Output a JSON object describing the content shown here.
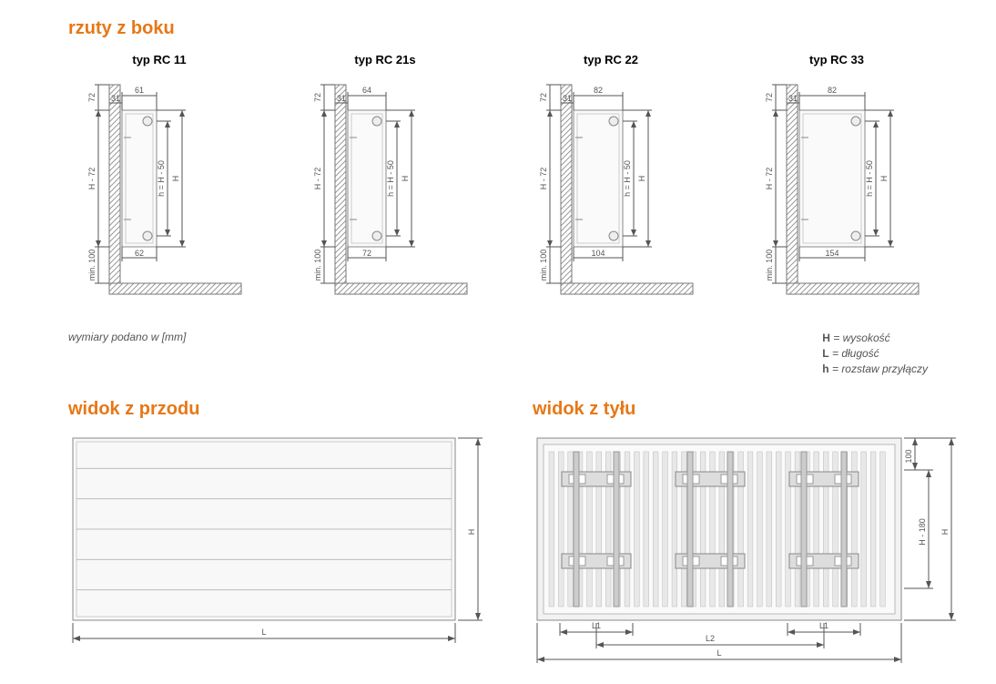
{
  "colors": {
    "accent": "#e67817",
    "line": "#555555",
    "hatch": "#999999",
    "fill_light": "#f5f5f5",
    "background": "#ffffff"
  },
  "section_titles": {
    "side": "rzuty z boku",
    "front": "widok z przodu",
    "back": "widok z tyłu"
  },
  "units_note": "wymiary podano w [mm]",
  "legend": {
    "H": "wysokość",
    "L": "długość",
    "h": "rozstaw przyłączy"
  },
  "side_types": [
    {
      "label": "typ RC 11",
      "top_dim": "61",
      "top_offset": "31",
      "left_top": "72",
      "bottom_dim": "62",
      "body_width": 38
    },
    {
      "label": "typ RC 21s",
      "top_dim": "64",
      "top_offset": "31",
      "left_top": "72",
      "bottom_dim": "72",
      "body_width": 42
    },
    {
      "label": "typ RC 22",
      "top_dim": "82",
      "top_offset": "31",
      "left_top": "72",
      "bottom_dim": "104",
      "body_width": 54
    },
    {
      "label": "typ RC 33",
      "top_dim": "82",
      "top_offset": "31",
      "left_top": "72",
      "bottom_dim": "154",
      "body_width": 72
    }
  ],
  "common_dims": {
    "H_label": "H",
    "H_minus_72": "H - 72",
    "h_formula": "h = H - 50",
    "min_bottom": "min. 100"
  },
  "front": {
    "width_label": "L",
    "height_label": "H",
    "lines": 5
  },
  "back": {
    "width_label": "L",
    "height_label": "H",
    "inner_height": "H - 180",
    "top_offset": "100",
    "L1": "L1",
    "L2": "L2",
    "brackets": 3,
    "fins": 36
  }
}
